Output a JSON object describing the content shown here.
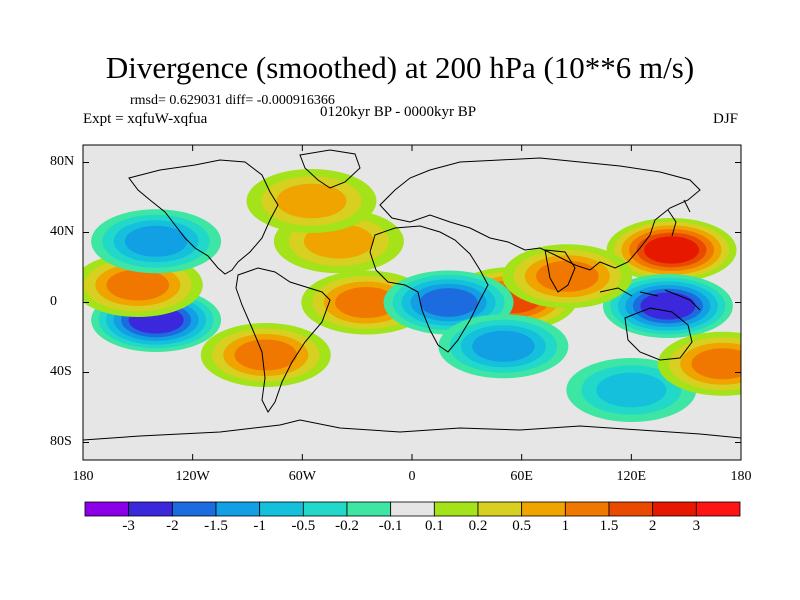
{
  "header": {
    "title": "Divergence (smoothed) at 200 hPa (10**6 m/s)",
    "stats": "rmsd= 0.629031 diff= -0.000916366",
    "period": "0120kyr BP - 0000kyr BP",
    "experiment": "Expt = xqfuW-xqfua",
    "season": "DJF"
  },
  "axes": {
    "y_ticks": [
      {
        "label": "80N",
        "lat": 80
      },
      {
        "label": "40N",
        "lat": 40
      },
      {
        "label": "0",
        "lat": 0
      },
      {
        "label": "40S",
        "lat": -40
      },
      {
        "label": "80S",
        "lat": -80
      }
    ],
    "x_ticks": [
      {
        "label": "180",
        "lon": -180
      },
      {
        "label": "120W",
        "lon": -120
      },
      {
        "label": "60W",
        "lon": -60
      },
      {
        "label": "0",
        "lon": 0
      },
      {
        "label": "60E",
        "lon": 60
      },
      {
        "label": "120E",
        "lon": 120
      },
      {
        "label": "180",
        "lon": 180
      }
    ]
  },
  "colorbar": {
    "labels": [
      "-3",
      "-2",
      "-1.5",
      "-1",
      "-0.5",
      "-0.2",
      "-0.1",
      "0.1",
      "0.2",
      "0.5",
      "1",
      "1.5",
      "2",
      "3"
    ],
    "colors": [
      "#8b00e8",
      "#3b28dc",
      "#1c6ce0",
      "#12a0e4",
      "#14c0dc",
      "#22d8c8",
      "#3ee6a4",
      "#e6e6e6",
      "#a4e21a",
      "#d8d020",
      "#f0a400",
      "#f07800",
      "#ea4a00",
      "#e61800",
      "#ff1414"
    ]
  },
  "chart_data": {
    "type": "heatmap",
    "title": "Divergence (smoothed) at 200 hPa (10**6 m/s)",
    "units": "10**6 m/s",
    "xlim": [
      -180,
      180
    ],
    "ylim": [
      -90,
      90
    ],
    "levels": [
      -3,
      -2,
      -1.5,
      -1,
      -0.5,
      -0.2,
      -0.1,
      0.1,
      0.2,
      0.5,
      1,
      1.5,
      2,
      3
    ],
    "features": [
      {
        "name": "W Pacific positive maximum",
        "lon": 142,
        "lat": 30,
        "value": 2.6
      },
      {
        "name": "Maritime continent negative minimum",
        "lon": 140,
        "lat": -2,
        "value": -2.8
      },
      {
        "name": "SE Pacific negative minimum",
        "lon": -140,
        "lat": -10,
        "value": -2.2
      },
      {
        "name": "E Africa / Arabian Sea positive",
        "lon": 55,
        "lat": 2,
        "value": 1.6
      },
      {
        "name": "Indian Ocean positive",
        "lon": 85,
        "lat": 15,
        "value": 1.4
      },
      {
        "name": "Tropical S Atlantic positive",
        "lon": -25,
        "lat": 0,
        "value": 1.2
      },
      {
        "name": "C Pacific positive",
        "lon": -150,
        "lat": 10,
        "value": 1.3
      },
      {
        "name": "Central Africa negative",
        "lon": 20,
        "lat": 0,
        "value": -1.5
      },
      {
        "name": "SW Indian Ocean negative",
        "lon": 50,
        "lat": -25,
        "value": -1.2
      },
      {
        "name": "N Pacific negative",
        "lon": -140,
        "lat": 35,
        "value": -1.1
      },
      {
        "name": "Atlantic positive band",
        "lon": -40,
        "lat": 35,
        "value": 0.8
      },
      {
        "name": "S Pacific positive",
        "lon": -80,
        "lat": -30,
        "value": 1.0
      },
      {
        "name": "Southern Ocean negative",
        "lon": 120,
        "lat": -50,
        "value": -0.8
      },
      {
        "name": "N Atlantic positive",
        "lon": -55,
        "lat": 58,
        "value": 0.6
      },
      {
        "name": "Australia region positive",
        "lon": 170,
        "lat": -35,
        "value": 1.0
      }
    ]
  }
}
